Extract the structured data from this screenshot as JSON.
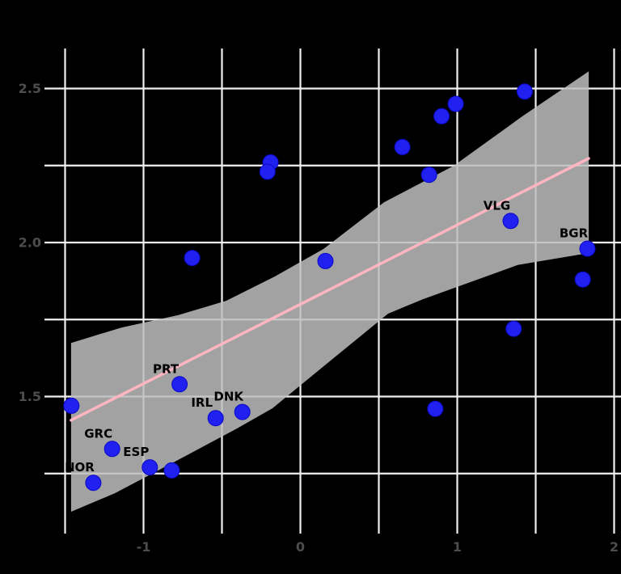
{
  "chart_data": {
    "type": "scatter",
    "title": "",
    "xlabel": "",
    "ylabel": "",
    "xlim": [
      -1.62,
      2.05
    ],
    "ylim": [
      1.06,
      2.63
    ],
    "grid": true,
    "legend_position": "none",
    "x_gridlines": [
      -1.5,
      -1.0,
      -0.5,
      0.0,
      0.5,
      1.0,
      1.5,
      2.0
    ],
    "y_gridlines": [
      2.5,
      2.25,
      2.0,
      1.75,
      1.5,
      1.25
    ],
    "x_tick_labels": [
      {
        "value": -1,
        "text": "-1"
      },
      {
        "value": 0,
        "text": "0"
      },
      {
        "value": 1,
        "text": "1"
      },
      {
        "value": 2,
        "text": "2"
      }
    ],
    "y_tick_labels": [
      {
        "value": 2.5,
        "text": "2.5"
      },
      {
        "value": 2.0,
        "text": "2.0"
      },
      {
        "value": 1.5,
        "text": "1.5"
      }
    ],
    "points": [
      {
        "x": -1.46,
        "y": 1.47,
        "label": ""
      },
      {
        "x": -1.32,
        "y": 1.22,
        "label": "NOR"
      },
      {
        "x": -1.2,
        "y": 1.33,
        "label": "GRC"
      },
      {
        "x": -0.96,
        "y": 1.27,
        "label": "ESP"
      },
      {
        "x": -0.82,
        "y": 1.26,
        "label": ""
      },
      {
        "x": -0.77,
        "y": 1.54,
        "label": "PRT"
      },
      {
        "x": -0.54,
        "y": 1.43,
        "label": "IRL"
      },
      {
        "x": -0.37,
        "y": 1.45,
        "label": "DNK"
      },
      {
        "x": -0.69,
        "y": 1.95,
        "label": ""
      },
      {
        "x": 0.16,
        "y": 1.94,
        "label": ""
      },
      {
        "x": -0.19,
        "y": 2.26,
        "label": ""
      },
      {
        "x": -0.21,
        "y": 2.23,
        "label": ""
      },
      {
        "x": 0.65,
        "y": 2.31,
        "label": ""
      },
      {
        "x": 0.9,
        "y": 2.41,
        "label": ""
      },
      {
        "x": 0.99,
        "y": 2.45,
        "label": ""
      },
      {
        "x": 1.43,
        "y": 2.49,
        "label": ""
      },
      {
        "x": 0.82,
        "y": 2.22,
        "label": ""
      },
      {
        "x": 1.34,
        "y": 2.07,
        "label": "VLG"
      },
      {
        "x": 1.83,
        "y": 1.98,
        "label": "BGR"
      },
      {
        "x": 1.8,
        "y": 1.88,
        "label": ""
      },
      {
        "x": 1.36,
        "y": 1.72,
        "label": ""
      },
      {
        "x": 0.86,
        "y": 1.46,
        "label": ""
      }
    ],
    "regression_line": {
      "x1": -1.462,
      "y1": 1.423,
      "x2": 1.838,
      "y2": 2.273
    },
    "confidence_band": {
      "upper": [
        [
          -1.462,
          1.674
        ],
        [
          -1.142,
          1.724
        ],
        [
          -0.781,
          1.764
        ],
        [
          -0.472,
          1.811
        ],
        [
          -0.162,
          1.89
        ],
        [
          0.147,
          1.979
        ],
        [
          0.534,
          2.131
        ],
        [
          0.977,
          2.249
        ],
        [
          1.421,
          2.412
        ],
        [
          1.838,
          2.556
        ]
      ],
      "lower": [
        [
          -1.462,
          1.126
        ],
        [
          -1.183,
          1.186
        ],
        [
          -0.791,
          1.291
        ],
        [
          -0.405,
          1.396
        ],
        [
          -0.178,
          1.462
        ],
        [
          0.147,
          1.598
        ],
        [
          0.559,
          1.769
        ],
        [
          0.781,
          1.816
        ],
        [
          1.385,
          1.927
        ],
        [
          1.838,
          1.966
        ]
      ]
    },
    "colors": {
      "background": "#000000",
      "gridline": "#f0f0f0",
      "band_fill": "rgba(190,190,190,0.85)",
      "regression_line": "#ffb6c1",
      "point_fill": "#2020f0",
      "point_stroke": "#0909c8",
      "tick_label": "#4d4d4d",
      "point_label": "#000000"
    }
  }
}
